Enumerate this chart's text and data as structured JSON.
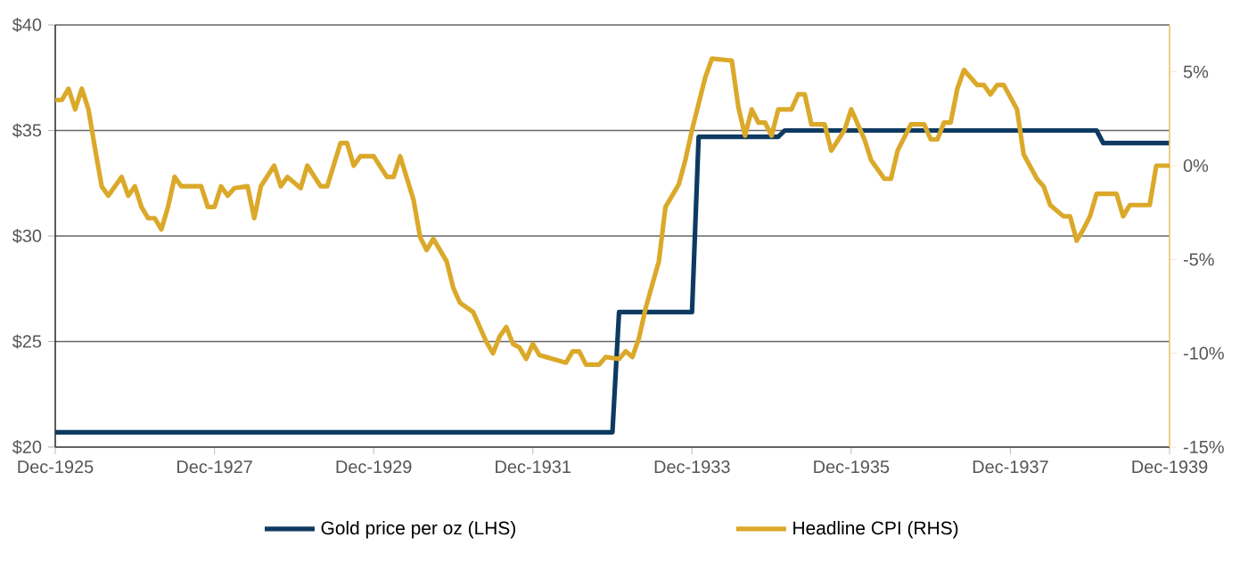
{
  "chart_data": {
    "type": "line",
    "xlim": [
      "1925-12",
      "1939-12"
    ],
    "xticks": [
      {
        "value": "1925-12",
        "label": "Dec-1925"
      },
      {
        "value": "1927-12",
        "label": "Dec-1927"
      },
      {
        "value": "1929-12",
        "label": "Dec-1929"
      },
      {
        "value": "1931-12",
        "label": "Dec-1931"
      },
      {
        "value": "1933-12",
        "label": "Dec-1933"
      },
      {
        "value": "1935-12",
        "label": "Dec-1935"
      },
      {
        "value": "1937-12",
        "label": "Dec-1937"
      },
      {
        "value": "1939-12",
        "label": "Dec-1939"
      }
    ],
    "ylim": [
      20,
      40
    ],
    "yticks": [
      {
        "value": 20,
        "label": "$20"
      },
      {
        "value": 25,
        "label": "$25"
      },
      {
        "value": 30,
        "label": "$30"
      },
      {
        "value": 35,
        "label": "$35"
      },
      {
        "value": 40,
        "label": "$40"
      }
    ],
    "y2lim": [
      -15,
      7.5
    ],
    "y2ticks": [
      {
        "value": -15,
        "label": "-15%"
      },
      {
        "value": -10,
        "label": "-10%"
      },
      {
        "value": -5,
        "label": "-5%"
      },
      {
        "value": 0,
        "label": "0%"
      },
      {
        "value": 5,
        "label": "5%"
      }
    ],
    "grid": "y",
    "legend": "bottom",
    "series": [
      {
        "name": "Gold price per oz (LHS)",
        "color": "#0e3a61",
        "x": [
          "1925-12",
          "1932-12",
          "1933-01",
          "1933-12",
          "1934-01",
          "1935-01",
          "1935-02",
          "1939-01",
          "1939-02",
          "1939-12"
        ],
        "values": [
          20.7,
          20.7,
          26.4,
          26.4,
          34.7,
          34.7,
          35.0,
          35.0,
          34.4,
          34.4
        ]
      },
      {
        "name": "Headline CPI (RHS)",
        "color": "#dba92a",
        "axis": "y2",
        "x": [
          "1925-12",
          "1926-01",
          "1926-02",
          "1926-03",
          "1926-04",
          "1926-05",
          "1926-06",
          "1926-07",
          "1926-08",
          "1926-10",
          "1926-11",
          "1926-12",
          "1927-01",
          "1927-02",
          "1927-03",
          "1927-04",
          "1927-05",
          "1927-06",
          "1927-07",
          "1927-10",
          "1927-11",
          "1927-12",
          "1928-01",
          "1928-02",
          "1928-03",
          "1928-05",
          "1928-06",
          "1928-07",
          "1928-09",
          "1928-10",
          "1928-11",
          "1929-01",
          "1929-02",
          "1929-04",
          "1929-05",
          "1929-07",
          "1929-08",
          "1929-09",
          "1929-10",
          "1929-12",
          "1930-02",
          "1930-03",
          "1930-04",
          "1930-06",
          "1930-07",
          "1930-08",
          "1930-09",
          "1930-11",
          "1930-12",
          "1931-01",
          "1931-03",
          "1931-05",
          "1931-06",
          "1931-07",
          "1931-08",
          "1931-09",
          "1931-10",
          "1931-11",
          "1931-12",
          "1932-01",
          "1932-02",
          "1932-03",
          "1932-05",
          "1932-06",
          "1932-07",
          "1932-08",
          "1932-10",
          "1932-11",
          "1933-01",
          "1933-02",
          "1933-03",
          "1933-04",
          "1933-05",
          "1933-07",
          "1933-08",
          "1933-10",
          "1933-11",
          "1933-12",
          "1934-02",
          "1934-03",
          "1934-06",
          "1934-07",
          "1934-08",
          "1934-09",
          "1934-10",
          "1934-11",
          "1934-12",
          "1935-01",
          "1935-03",
          "1935-04",
          "1935-05",
          "1935-06",
          "1935-08",
          "1935-09",
          "1935-11",
          "1935-12",
          "1936-02",
          "1936-03",
          "1936-05",
          "1936-06",
          "1936-07",
          "1936-09",
          "1936-11",
          "1936-12",
          "1937-01",
          "1937-02",
          "1937-03",
          "1937-04",
          "1937-05",
          "1937-07",
          "1937-08",
          "1937-09",
          "1937-10",
          "1937-11",
          "1938-01",
          "1938-02",
          "1938-04",
          "1938-05",
          "1938-06",
          "1938-08",
          "1938-09",
          "1938-10",
          "1938-11",
          "1938-12",
          "1939-01",
          "1939-04",
          "1939-05",
          "1939-06",
          "1939-09",
          "1939-10",
          "1939-12"
        ],
        "values": [
          3.5,
          3.5,
          4.1,
          3.0,
          4.1,
          3.0,
          0.9,
          -1.1,
          -1.6,
          -0.6,
          -1.6,
          -1.1,
          -2.2,
          -2.8,
          -2.8,
          -3.4,
          -2.2,
          -0.6,
          -1.1,
          -1.1,
          -2.2,
          -2.2,
          -1.1,
          -1.6,
          -1.2,
          -1.1,
          -2.8,
          -1.1,
          0,
          -1.1,
          -0.6,
          -1.2,
          0,
          -1.1,
          -1.1,
          1.2,
          1.2,
          0,
          0.5,
          0.5,
          -0.6,
          -0.6,
          0.5,
          -1.8,
          -3.8,
          -4.5,
          -3.9,
          -5.1,
          -6.5,
          -7.3,
          -7.8,
          -9.4,
          -10.0,
          -9.1,
          -8.6,
          -9.5,
          -9.7,
          -10.3,
          -9.5,
          -10.1,
          -10.2,
          -10.3,
          -10.5,
          -9.9,
          -9.9,
          -10.6,
          -10.6,
          -10.2,
          -10.3,
          -9.9,
          -10.2,
          -9.2,
          -7.6,
          -5.1,
          -2.2,
          -1.0,
          0.3,
          1.9,
          4.7,
          5.7,
          5.6,
          3.1,
          1.6,
          3.0,
          2.3,
          2.3,
          1.6,
          3.0,
          3.0,
          3.8,
          3.8,
          2.2,
          2.2,
          0.8,
          1.9,
          3.0,
          1.4,
          0.3,
          -0.7,
          -0.7,
          0.8,
          2.2,
          2.2,
          1.4,
          1.4,
          2.3,
          2.3,
          4.1,
          5.1,
          4.3,
          4.3,
          3.8,
          4.3,
          4.3,
          3.0,
          0.6,
          -0.7,
          -1.1,
          -2.1,
          -2.7,
          -2.7,
          -4.0,
          -3.4,
          -2.7,
          -1.5,
          -1.5,
          -2.7,
          -2.1,
          -2.1,
          0,
          0
        ]
      }
    ]
  }
}
